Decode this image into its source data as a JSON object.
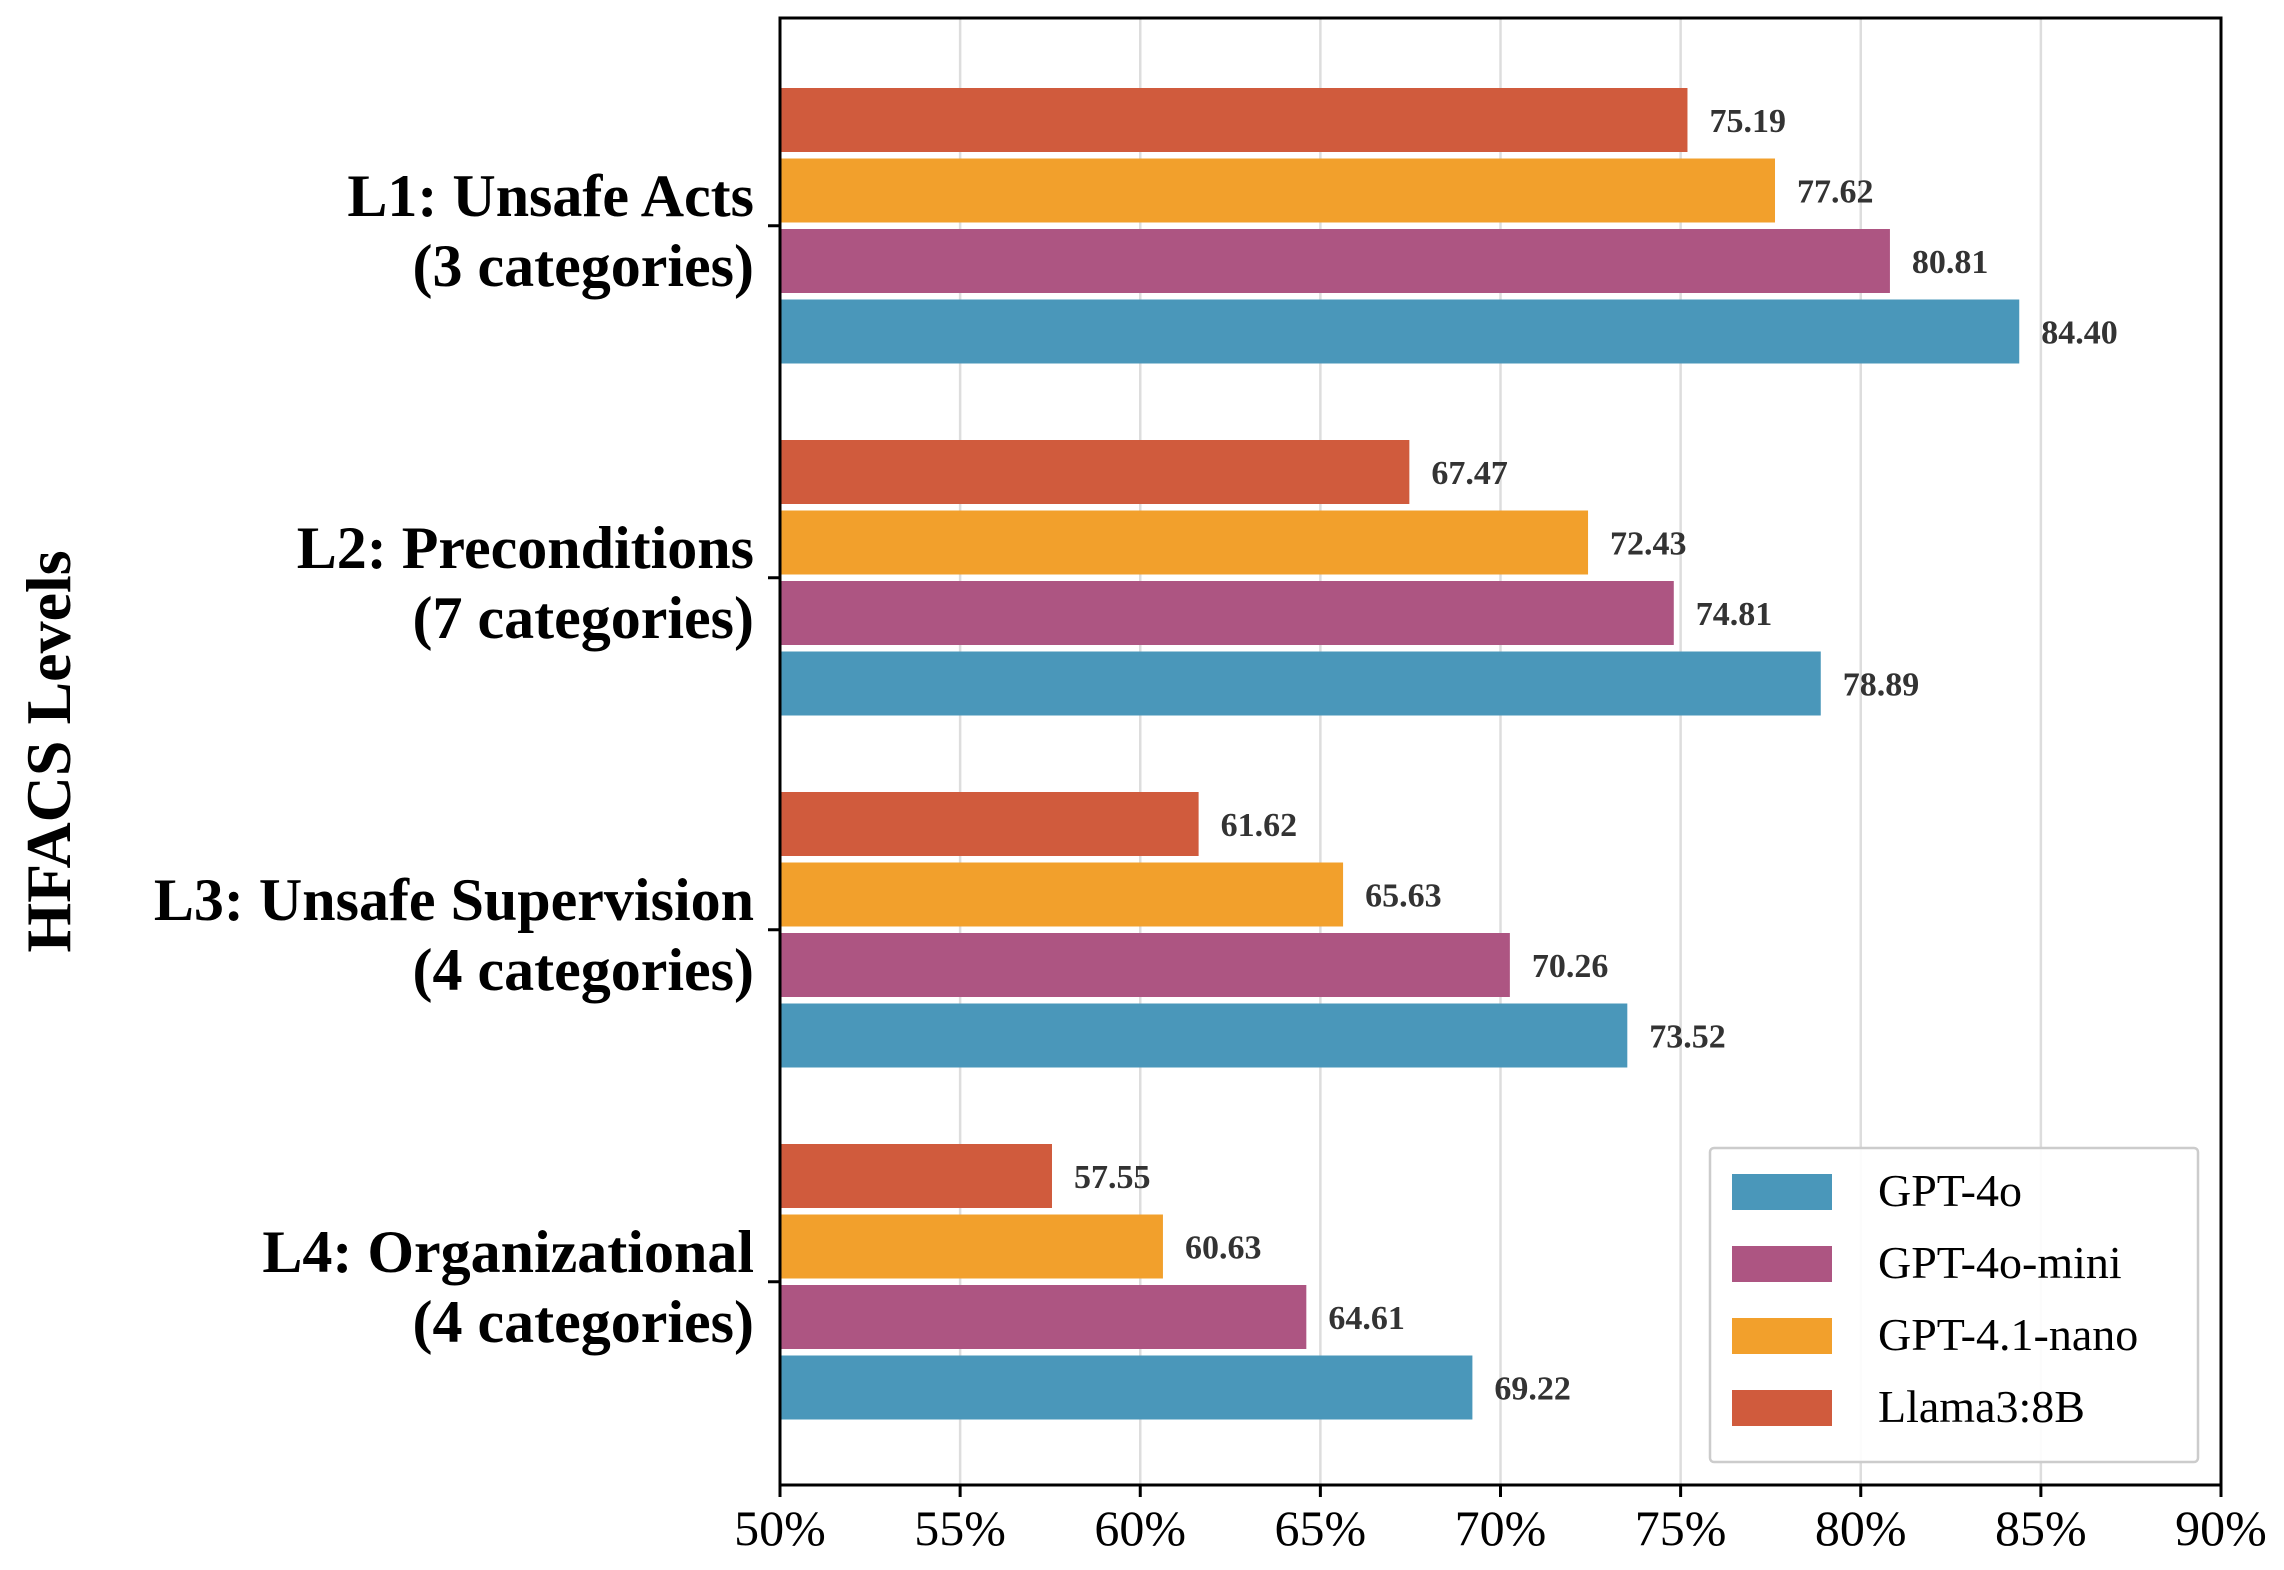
{
  "chart_data": {
    "type": "bar",
    "orientation": "horizontal",
    "title": "",
    "ylabel": "HFACS Levels",
    "xlabel": "",
    "xlim": [
      50,
      90
    ],
    "xticks": [
      50,
      55,
      60,
      65,
      70,
      75,
      80,
      85,
      90
    ],
    "xtick_labels": [
      "50%",
      "55%",
      "60%",
      "65%",
      "70%",
      "75%",
      "80%",
      "85%",
      "90%"
    ],
    "categories": [
      [
        "L1: Unsafe Acts",
        "(3 categories)"
      ],
      [
        "L2: Preconditions",
        "(7 categories)"
      ],
      [
        "L3: Unsafe Supervision",
        "(4 categories)"
      ],
      [
        "L4: Organizational",
        "(4 categories)"
      ]
    ],
    "series": [
      {
        "name": "GPT-4o",
        "color": "#4A97BA",
        "values": [
          84.4,
          78.89,
          73.52,
          69.22
        ],
        "labels": [
          "84.40",
          "78.89",
          "73.52",
          "69.22"
        ]
      },
      {
        "name": "GPT-4o-mini",
        "color": "#AD5582",
        "values": [
          80.81,
          74.81,
          70.26,
          64.61
        ],
        "labels": [
          "80.81",
          "74.81",
          "70.26",
          "64.61"
        ]
      },
      {
        "name": "GPT-4.1-nano",
        "color": "#F2A02C",
        "values": [
          77.62,
          72.43,
          65.63,
          60.63
        ],
        "labels": [
          "77.62",
          "72.43",
          "65.63",
          "60.63"
        ]
      },
      {
        "name": "Llama3:8B",
        "color": "#D05B3D",
        "values": [
          75.19,
          67.47,
          61.62,
          57.55
        ],
        "labels": [
          "75.19",
          "67.47",
          "61.62",
          "57.55"
        ]
      }
    ],
    "grid": "vertical",
    "legend_position": "bottom-right"
  }
}
